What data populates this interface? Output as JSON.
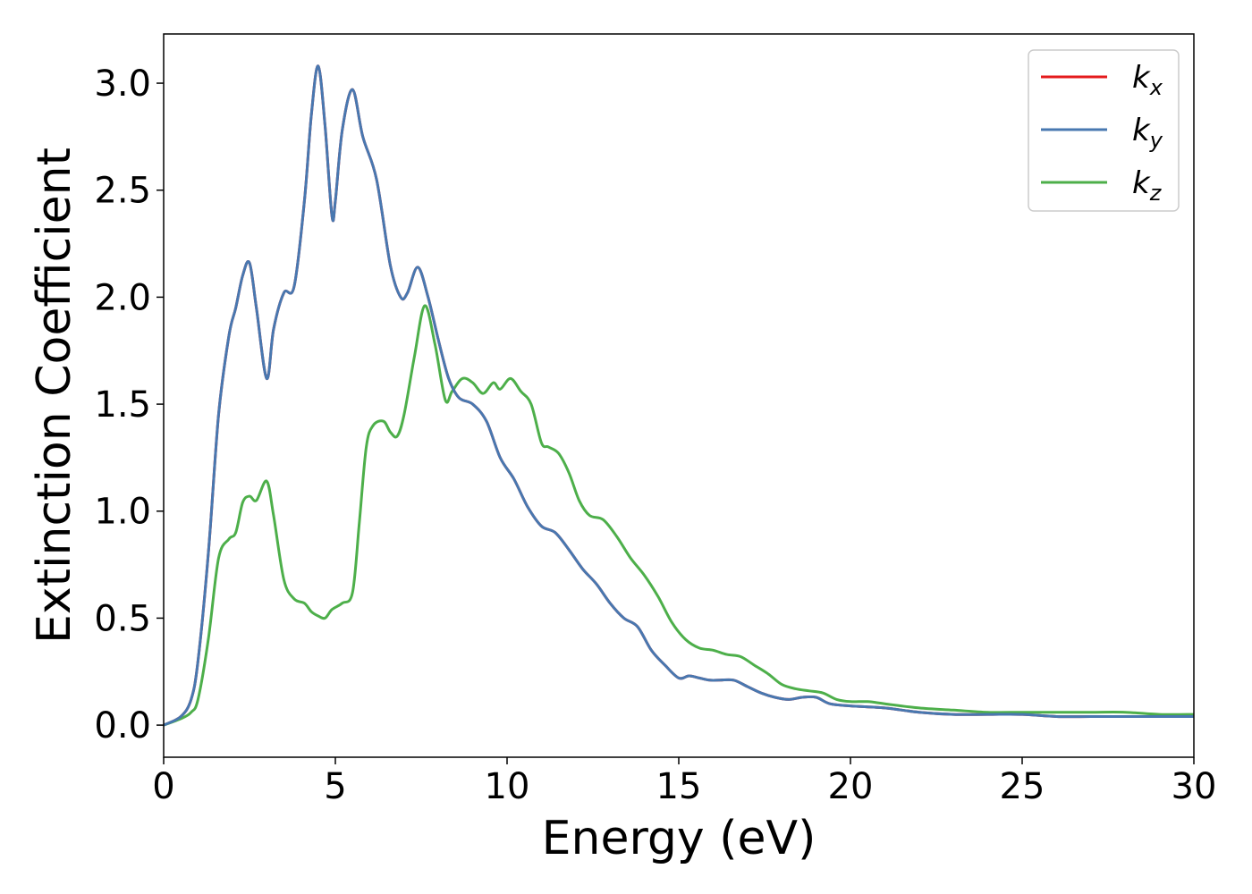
{
  "chart_data": {
    "type": "line",
    "xlabel": "Energy (eV)",
    "ylabel": "Extinction Coefficient",
    "xlim": [
      0,
      30
    ],
    "ylim": [
      -0.15,
      3.23
    ],
    "x_ticks": [
      0,
      5,
      10,
      15,
      20,
      25,
      30
    ],
    "x_tick_labels": [
      "0",
      "5",
      "10",
      "15",
      "20",
      "25",
      "30"
    ],
    "y_ticks": [
      0.0,
      0.5,
      1.0,
      1.5,
      2.0,
      2.5,
      3.0
    ],
    "y_tick_labels": [
      "0.0",
      "0.5",
      "1.0",
      "1.5",
      "2.0",
      "2.5",
      "3.0"
    ],
    "grid": false,
    "legend_position": "top-right",
    "series": [
      {
        "name": "k_x",
        "legend_base": "k",
        "legend_sub": "x",
        "color": "#e41a1c",
        "x": [
          0,
          0.5,
          0.8,
          1.0,
          1.3,
          1.6,
          1.9,
          2.1,
          2.3,
          2.5,
          2.7,
          3.0,
          3.2,
          3.5,
          3.8,
          4.1,
          4.3,
          4.5,
          4.7,
          4.9,
          5.0,
          5.2,
          5.5,
          5.8,
          6.2,
          6.6,
          6.9,
          7.1,
          7.4,
          7.7,
          8.0,
          8.3,
          8.6,
          9.0,
          9.4,
          9.8,
          10.2,
          10.6,
          11.0,
          11.4,
          11.8,
          12.2,
          12.6,
          13.0,
          13.4,
          13.8,
          14.2,
          14.6,
          15.0,
          15.3,
          15.6,
          15.9,
          16.2,
          16.6,
          17.0,
          17.4,
          17.8,
          18.2,
          18.6,
          19.0,
          19.4,
          20.0,
          21.0,
          22.0,
          23.0,
          24.0,
          25.0,
          26.0,
          27.0,
          28.0,
          29.0,
          30.0
        ],
        "y": [
          0.0,
          0.04,
          0.12,
          0.3,
          0.8,
          1.45,
          1.82,
          1.95,
          2.1,
          2.16,
          1.95,
          1.62,
          1.85,
          2.02,
          2.05,
          2.45,
          2.85,
          3.08,
          2.8,
          2.38,
          2.45,
          2.78,
          2.97,
          2.75,
          2.55,
          2.15,
          2.0,
          2.02,
          2.14,
          2.0,
          1.8,
          1.62,
          1.53,
          1.5,
          1.42,
          1.25,
          1.15,
          1.02,
          0.93,
          0.9,
          0.82,
          0.73,
          0.66,
          0.57,
          0.5,
          0.46,
          0.35,
          0.28,
          0.22,
          0.23,
          0.22,
          0.21,
          0.21,
          0.21,
          0.18,
          0.15,
          0.13,
          0.12,
          0.13,
          0.13,
          0.1,
          0.09,
          0.08,
          0.06,
          0.05,
          0.05,
          0.05,
          0.04,
          0.04,
          0.04,
          0.04,
          0.04
        ]
      },
      {
        "name": "k_y",
        "legend_base": "k",
        "legend_sub": "y",
        "color": "#4878b0",
        "x": [
          0,
          0.5,
          0.8,
          1.0,
          1.3,
          1.6,
          1.9,
          2.1,
          2.3,
          2.5,
          2.7,
          3.0,
          3.2,
          3.5,
          3.8,
          4.1,
          4.3,
          4.5,
          4.7,
          4.9,
          5.0,
          5.2,
          5.5,
          5.8,
          6.2,
          6.6,
          6.9,
          7.1,
          7.4,
          7.7,
          8.0,
          8.3,
          8.6,
          9.0,
          9.4,
          9.8,
          10.2,
          10.6,
          11.0,
          11.4,
          11.8,
          12.2,
          12.6,
          13.0,
          13.4,
          13.8,
          14.2,
          14.6,
          15.0,
          15.3,
          15.6,
          15.9,
          16.2,
          16.6,
          17.0,
          17.4,
          17.8,
          18.2,
          18.6,
          19.0,
          19.4,
          20.0,
          21.0,
          22.0,
          23.0,
          24.0,
          25.0,
          26.0,
          27.0,
          28.0,
          29.0,
          30.0
        ],
        "y": [
          0.0,
          0.04,
          0.12,
          0.3,
          0.8,
          1.45,
          1.82,
          1.95,
          2.1,
          2.16,
          1.95,
          1.62,
          1.85,
          2.02,
          2.05,
          2.45,
          2.85,
          3.08,
          2.8,
          2.38,
          2.45,
          2.78,
          2.97,
          2.75,
          2.55,
          2.15,
          2.0,
          2.02,
          2.14,
          2.0,
          1.8,
          1.62,
          1.53,
          1.5,
          1.42,
          1.25,
          1.15,
          1.02,
          0.93,
          0.9,
          0.82,
          0.73,
          0.66,
          0.57,
          0.5,
          0.46,
          0.35,
          0.28,
          0.22,
          0.23,
          0.22,
          0.21,
          0.21,
          0.21,
          0.18,
          0.15,
          0.13,
          0.12,
          0.13,
          0.13,
          0.1,
          0.09,
          0.08,
          0.06,
          0.05,
          0.05,
          0.05,
          0.04,
          0.04,
          0.04,
          0.04,
          0.04
        ]
      },
      {
        "name": "k_z",
        "legend_base": "k",
        "legend_sub": "z",
        "color": "#4daf4a",
        "x": [
          0,
          0.5,
          0.8,
          1.0,
          1.3,
          1.6,
          1.9,
          2.1,
          2.3,
          2.5,
          2.7,
          3.0,
          3.2,
          3.5,
          3.8,
          4.1,
          4.3,
          4.5,
          4.7,
          4.9,
          5.2,
          5.5,
          5.7,
          5.9,
          6.1,
          6.4,
          6.6,
          6.8,
          7.0,
          7.3,
          7.6,
          7.9,
          8.2,
          8.4,
          8.7,
          9.0,
          9.3,
          9.6,
          9.8,
          10.1,
          10.4,
          10.7,
          11.0,
          11.2,
          11.5,
          11.8,
          12.1,
          12.4,
          12.8,
          13.2,
          13.6,
          14.0,
          14.4,
          14.8,
          15.2,
          15.6,
          16.0,
          16.4,
          16.8,
          17.2,
          17.6,
          18.0,
          18.4,
          18.8,
          19.2,
          19.6,
          20.0,
          20.5,
          21.0,
          22.0,
          23.0,
          24.0,
          25.0,
          26.0,
          27.0,
          28.0,
          29.0,
          30.0
        ],
        "y": [
          0.0,
          0.03,
          0.06,
          0.12,
          0.4,
          0.78,
          0.87,
          0.9,
          1.04,
          1.07,
          1.05,
          1.14,
          0.98,
          0.68,
          0.59,
          0.57,
          0.53,
          0.51,
          0.5,
          0.54,
          0.57,
          0.62,
          0.95,
          1.3,
          1.4,
          1.42,
          1.37,
          1.35,
          1.45,
          1.72,
          1.96,
          1.78,
          1.52,
          1.56,
          1.62,
          1.6,
          1.55,
          1.6,
          1.57,
          1.62,
          1.56,
          1.5,
          1.32,
          1.3,
          1.27,
          1.18,
          1.05,
          0.98,
          0.96,
          0.88,
          0.78,
          0.7,
          0.6,
          0.48,
          0.4,
          0.36,
          0.35,
          0.33,
          0.32,
          0.28,
          0.24,
          0.19,
          0.17,
          0.16,
          0.15,
          0.12,
          0.11,
          0.11,
          0.1,
          0.08,
          0.07,
          0.06,
          0.06,
          0.06,
          0.06,
          0.06,
          0.05,
          0.05
        ]
      }
    ]
  }
}
